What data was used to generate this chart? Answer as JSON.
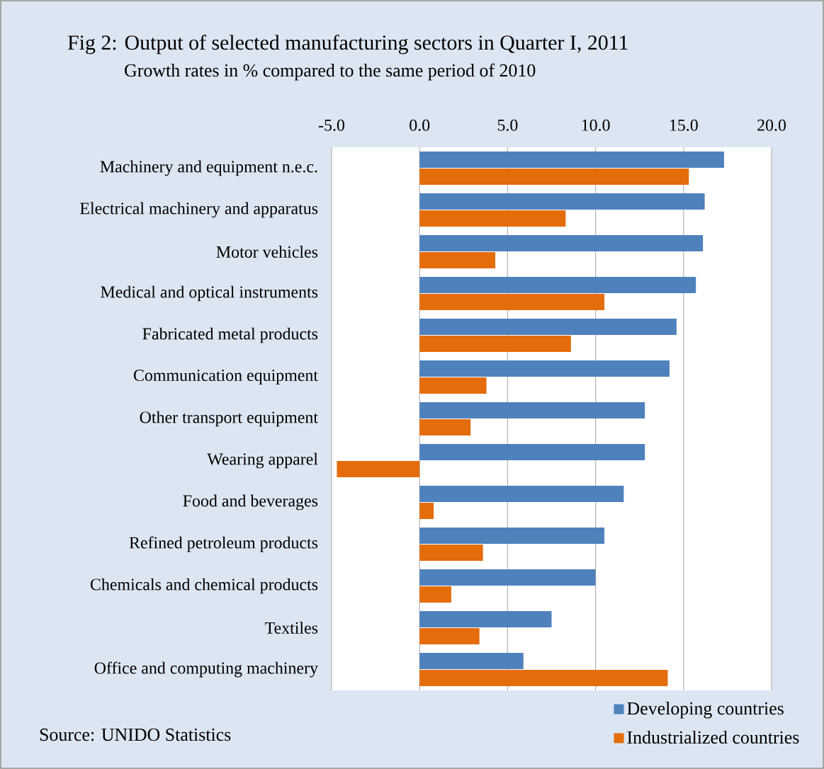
{
  "chart_data": {
    "type": "bar",
    "orientation": "horizontal",
    "title": "Fig 2: Output of selected manufacturing sectors in Quarter I, 2011",
    "subtitle": "Growth rates in % compared to the same period of 2010",
    "categories": [
      "Machinery and equipment n.e.c.",
      "Electrical machinery and apparatus",
      "Motor vehicles",
      "Medical and optical instruments",
      "Fabricated metal products",
      "Communication equipment",
      "Other transport equipment",
      "Wearing apparel",
      "Food and beverages",
      "Refined petroleum products",
      "Chemicals and chemical products",
      "Textiles",
      "Office and computing machinery"
    ],
    "series": [
      {
        "name": "Developing countries",
        "color": "#4f81bd",
        "values": [
          17.3,
          16.2,
          16.1,
          15.7,
          14.6,
          14.2,
          12.8,
          12.8,
          11.6,
          10.5,
          10.0,
          7.5,
          5.9
        ]
      },
      {
        "name": "Industrialized countries",
        "color": "#e46c0a",
        "values": [
          15.3,
          8.3,
          4.3,
          10.5,
          8.6,
          3.8,
          2.9,
          -4.7,
          0.8,
          3.6,
          1.8,
          3.4,
          14.1
        ]
      }
    ],
    "xlim": [
      -5,
      20
    ],
    "xticks": [
      {
        "value": -5,
        "label": "-5.0"
      },
      {
        "value": 0,
        "label": "0.0"
      },
      {
        "value": 5,
        "label": "5.0"
      },
      {
        "value": 10,
        "label": "10.0"
      },
      {
        "value": 15,
        "label": "15.0"
      },
      {
        "value": 20,
        "label": "20.0"
      }
    ],
    "grid": "x",
    "legend": "bottom right",
    "annotations": [
      "Source: UNIDO Statistics"
    ]
  }
}
